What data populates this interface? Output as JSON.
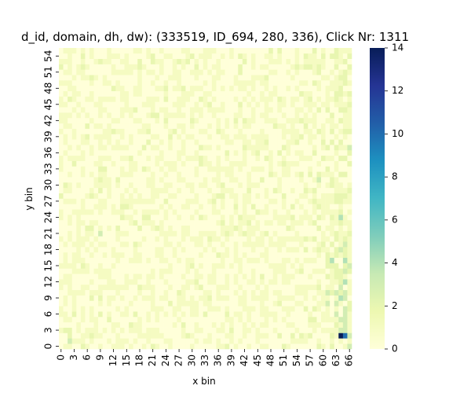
{
  "chart_data": {
    "type": "heatmap",
    "title": "d_id, domain, dh, dw): (333519, ID_694, 280, 336), Click Nr: 1311",
    "xlabel": "x bin",
    "ylabel": "y bin",
    "n_x_bins": 67,
    "n_y_bins": 56,
    "x_tick_labels": [
      "0",
      "3",
      "6",
      "9",
      "12",
      "15",
      "18",
      "21",
      "24",
      "27",
      "30",
      "33",
      "36",
      "39",
      "42",
      "45",
      "48",
      "51",
      "54",
      "57",
      "60",
      "63",
      "66"
    ],
    "y_tick_labels": [
      "0",
      "3",
      "6",
      "9",
      "12",
      "15",
      "18",
      "21",
      "24",
      "27",
      "30",
      "33",
      "36",
      "39",
      "42",
      "45",
      "48",
      "51",
      "54"
    ],
    "colorbar": {
      "min": 0,
      "max": 14,
      "ticks": [
        "0",
        "2",
        "4",
        "6",
        "8",
        "10",
        "12",
        "14"
      ],
      "colormap": [
        "#ffffd9",
        "#edf8b1",
        "#c7e9b4",
        "#7fcdbb",
        "#41b6c4",
        "#1d91c0",
        "#225ea8",
        "#253494",
        "#081d58"
      ]
    },
    "background_level": 1,
    "notable_cells": [
      {
        "x": 64,
        "y": 2,
        "value": 14
      },
      {
        "x": 65,
        "y": 2,
        "value": 10
      },
      {
        "x": 66,
        "y": 2,
        "value": 3
      },
      {
        "x": 66,
        "y": 0,
        "value": 3
      },
      {
        "x": 64,
        "y": 3,
        "value": 3
      },
      {
        "x": 65,
        "y": 3,
        "value": 3
      },
      {
        "x": 65,
        "y": 4,
        "value": 3
      },
      {
        "x": 64,
        "y": 5,
        "value": 3
      },
      {
        "x": 65,
        "y": 5,
        "value": 3
      },
      {
        "x": 63,
        "y": 6,
        "value": 3
      },
      {
        "x": 65,
        "y": 6,
        "value": 3
      },
      {
        "x": 65,
        "y": 7,
        "value": 3
      },
      {
        "x": 63,
        "y": 8,
        "value": 3
      },
      {
        "x": 61,
        "y": 8,
        "value": 3
      },
      {
        "x": 64,
        "y": 9,
        "value": 4
      },
      {
        "x": 65,
        "y": 9,
        "value": 3
      },
      {
        "x": 61,
        "y": 10,
        "value": 3
      },
      {
        "x": 63,
        "y": 10,
        "value": 3
      },
      {
        "x": 65,
        "y": 10,
        "value": 3
      },
      {
        "x": 64,
        "y": 11,
        "value": 3
      },
      {
        "x": 65,
        "y": 12,
        "value": 4
      },
      {
        "x": 65,
        "y": 14,
        "value": 3
      },
      {
        "x": 66,
        "y": 15,
        "value": 3
      },
      {
        "x": 65,
        "y": 16,
        "value": 4
      },
      {
        "x": 62,
        "y": 16,
        "value": 4
      },
      {
        "x": 64,
        "y": 18,
        "value": 3
      },
      {
        "x": 65,
        "y": 19,
        "value": 3
      },
      {
        "x": 66,
        "y": 21,
        "value": 2
      },
      {
        "x": 64,
        "y": 24,
        "value": 4
      },
      {
        "x": 66,
        "y": 37,
        "value": 3
      },
      {
        "x": 2,
        "y": 1,
        "value": 3
      },
      {
        "x": 2,
        "y": 2,
        "value": 2
      },
      {
        "x": 9,
        "y": 21,
        "value": 3
      },
      {
        "x": 15,
        "y": 26,
        "value": 2
      },
      {
        "x": 19,
        "y": 37,
        "value": 2
      },
      {
        "x": 59,
        "y": 31,
        "value": 3
      },
      {
        "x": 20,
        "y": 24,
        "value": 2
      }
    ]
  }
}
